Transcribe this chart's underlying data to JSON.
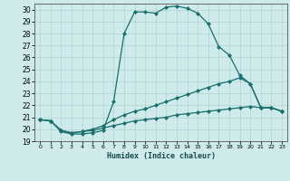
{
  "xlabel": "Humidex (Indice chaleur)",
  "background_color": "#ceeaea",
  "grid_color": "#b0d4d4",
  "line_color": "#1a6e6e",
  "xlim": [
    -0.5,
    23.5
  ],
  "ylim": [
    19,
    30.5
  ],
  "yticks": [
    19,
    20,
    21,
    22,
    23,
    24,
    25,
    26,
    27,
    28,
    29,
    30
  ],
  "xticks": [
    0,
    1,
    2,
    3,
    4,
    5,
    6,
    7,
    8,
    9,
    10,
    11,
    12,
    13,
    14,
    15,
    16,
    17,
    18,
    19,
    20,
    21,
    22,
    23
  ],
  "series": [
    {
      "x": [
        0,
        1,
        2,
        3,
        4,
        5,
        6,
        7,
        8,
        9,
        10,
        11,
        12,
        13,
        14,
        15,
        16,
        17,
        18,
        19,
        20,
        21,
        22,
        23
      ],
      "y": [
        20.8,
        20.7,
        19.8,
        19.6,
        19.6,
        19.7,
        19.9,
        22.3,
        28.0,
        29.8,
        29.8,
        29.7,
        30.2,
        30.3,
        30.1,
        29.7,
        28.8,
        26.9,
        26.2,
        24.5,
        23.8,
        21.8,
        21.8,
        21.5
      ]
    },
    {
      "x": [
        0,
        1,
        2,
        3,
        4,
        5,
        6,
        7,
        8,
        9,
        10,
        11,
        12,
        13,
        14,
        15,
        16,
        17,
        18,
        19,
        20,
        21,
        22,
        23
      ],
      "y": [
        20.8,
        20.7,
        19.9,
        19.7,
        19.8,
        20.0,
        20.3,
        20.8,
        21.2,
        21.5,
        21.7,
        22.0,
        22.3,
        22.6,
        22.9,
        23.2,
        23.5,
        23.8,
        24.0,
        24.3,
        23.8,
        21.8,
        21.8,
        21.5
      ]
    },
    {
      "x": [
        0,
        1,
        2,
        3,
        4,
        5,
        6,
        7,
        8,
        9,
        10,
        11,
        12,
        13,
        14,
        15,
        16,
        17,
        18,
        19,
        20,
        21,
        22,
        23
      ],
      "y": [
        20.8,
        20.7,
        19.9,
        19.7,
        19.8,
        19.9,
        20.1,
        20.3,
        20.5,
        20.7,
        20.8,
        20.9,
        21.0,
        21.2,
        21.3,
        21.4,
        21.5,
        21.6,
        21.7,
        21.8,
        21.9,
        21.8,
        21.8,
        21.5
      ]
    }
  ]
}
